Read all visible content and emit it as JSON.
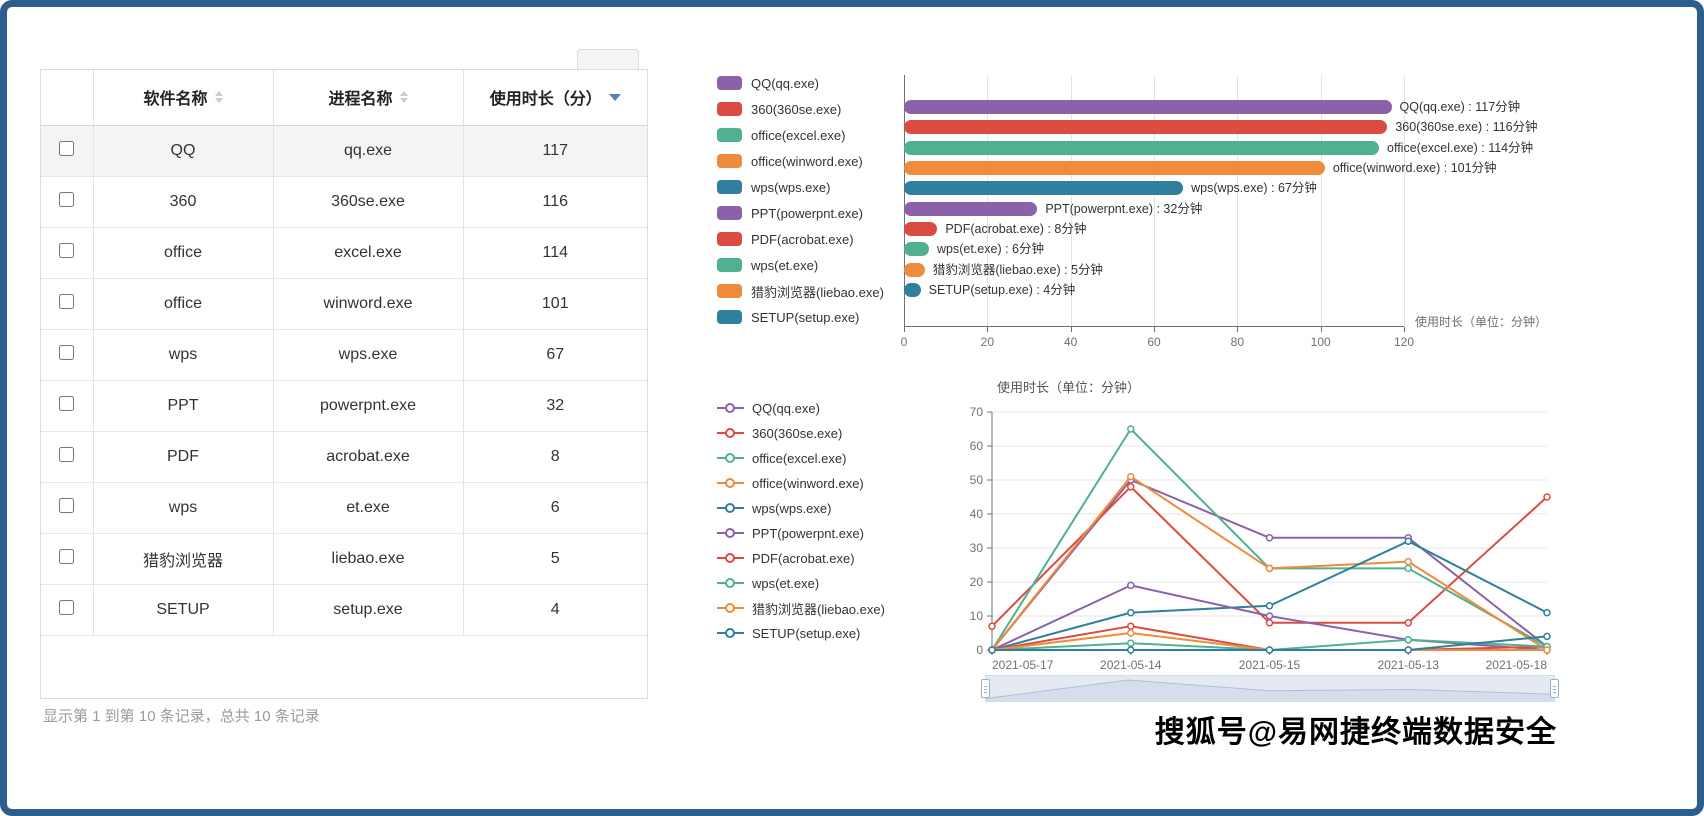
{
  "frame": {
    "border_color": "#2e5e8c"
  },
  "palette": {
    "purple": "#8b62a9",
    "red": "#dc4b41",
    "green": "#4fb191",
    "orange": "#ee8b3d",
    "teal": "#2f7f9e"
  },
  "table": {
    "columns": [
      {
        "label": "",
        "sortable": false
      },
      {
        "label": "软件名称",
        "sortable": true
      },
      {
        "label": "进程名称",
        "sortable": true
      },
      {
        "label": "使用时长（分）",
        "sortable": true,
        "sorted": "desc"
      }
    ],
    "rows": [
      {
        "software": "QQ",
        "process": "qq.exe",
        "minutes": "117"
      },
      {
        "software": "360",
        "process": "360se.exe",
        "minutes": "116"
      },
      {
        "software": "office",
        "process": "excel.exe",
        "minutes": "114"
      },
      {
        "software": "office",
        "process": "winword.exe",
        "minutes": "101"
      },
      {
        "software": "wps",
        "process": "wps.exe",
        "minutes": "67"
      },
      {
        "software": "PPT",
        "process": "powerpnt.exe",
        "minutes": "32"
      },
      {
        "software": "PDF",
        "process": "acrobat.exe",
        "minutes": "8"
      },
      {
        "software": "wps",
        "process": "et.exe",
        "minutes": "6"
      },
      {
        "software": "猎豹浏览器",
        "process": "liebao.exe",
        "minutes": "5"
      },
      {
        "software": "SETUP",
        "process": "setup.exe",
        "minutes": "4"
      }
    ],
    "footer": "显示第 1 到第 10 条记录，总共 10 条记录"
  },
  "chart_data": [
    {
      "type": "bar",
      "orientation": "horizontal",
      "categories": [
        "QQ(qq.exe)",
        "360(360se.exe)",
        "office(excel.exe)",
        "office(winword.exe)",
        "wps(wps.exe)",
        "PPT(powerpnt.exe)",
        "PDF(acrobat.exe)",
        "wps(et.exe)",
        "猎豹浏览器(liebao.exe)",
        "SETUP(setup.exe)"
      ],
      "values": [
        117,
        116,
        114,
        101,
        67,
        32,
        8,
        6,
        5,
        4
      ],
      "bar_labels": [
        "QQ(qq.exe) : 117分钟",
        "360(360se.exe) : 116分钟",
        "office(excel.exe) : 114分钟",
        "office(winword.exe) : 101分钟",
        "wps(wps.exe) : 67分钟",
        "PPT(powerpnt.exe) : 32分钟",
        "PDF(acrobat.exe) : 8分钟",
        "wps(et.exe) : 6分钟",
        "猎豹浏览器(liebao.exe) : 5分钟",
        "SETUP(setup.exe) : 4分钟"
      ],
      "colors": [
        "#8b62a9",
        "#dc4b41",
        "#4fb191",
        "#ee8b3d",
        "#2f7f9e",
        "#8b62a9",
        "#dc4b41",
        "#4fb191",
        "#ee8b3d",
        "#2f7f9e"
      ],
      "xlabel": "使用时长（单位：分钟）",
      "x_ticks": [
        0,
        20,
        40,
        60,
        80,
        100,
        120
      ],
      "xlim": [
        0,
        120
      ],
      "grid": true,
      "legend_position": "left"
    },
    {
      "type": "line",
      "title": "使用时长（单位：分钟）",
      "categories": [
        "2021-05-17",
        "2021-05-14",
        "2021-05-15",
        "2021-05-13",
        "2021-05-18"
      ],
      "series": [
        {
          "name": "QQ(qq.exe)",
          "color": "#8b62a9",
          "values": [
            0,
            50,
            33,
            33,
            1
          ]
        },
        {
          "name": "360(360se.exe)",
          "color": "#dc4b41",
          "values": [
            7,
            48,
            8,
            8,
            45
          ]
        },
        {
          "name": "office(excel.exe)",
          "color": "#4fb191",
          "values": [
            0,
            65,
            24,
            24,
            1
          ]
        },
        {
          "name": "office(winword.exe)",
          "color": "#ee8b3d",
          "values": [
            0,
            51,
            24,
            26,
            0
          ]
        },
        {
          "name": "wps(wps.exe)",
          "color": "#2f7f9e",
          "values": [
            0,
            11,
            13,
            32,
            11
          ]
        },
        {
          "name": "PPT(powerpnt.exe)",
          "color": "#8b62a9",
          "values": [
            0,
            19,
            10,
            3,
            0
          ]
        },
        {
          "name": "PDF(acrobat.exe)",
          "color": "#dc4b41",
          "values": [
            0,
            7,
            0,
            0,
            1
          ]
        },
        {
          "name": "wps(et.exe)",
          "color": "#4fb191",
          "values": [
            0,
            2,
            0,
            3,
            1
          ]
        },
        {
          "name": "猎豹浏览器(liebao.exe)",
          "color": "#ee8b3d",
          "values": [
            0,
            5,
            0,
            0,
            0
          ]
        },
        {
          "name": "SETUP(setup.exe)",
          "color": "#2f7f9e",
          "values": [
            0,
            0,
            0,
            0,
            4
          ]
        }
      ],
      "y_ticks": [
        0,
        10,
        20,
        30,
        40,
        50,
        60,
        70
      ],
      "ylim": [
        0,
        70
      ],
      "grid": true,
      "legend_position": "left",
      "has_datazoom_slider": true
    }
  ],
  "watermark": "搜狐号@易网捷终端数据安全"
}
